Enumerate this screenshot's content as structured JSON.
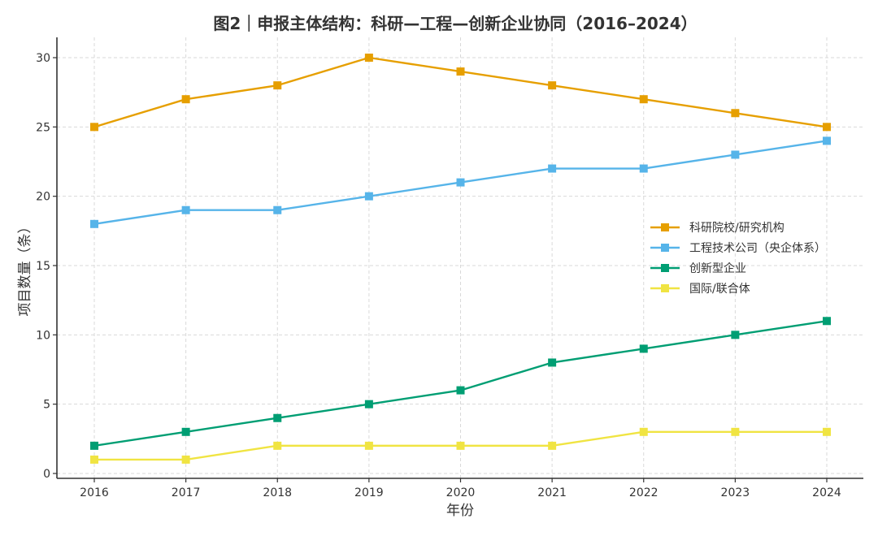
{
  "chart_data": {
    "type": "line",
    "title": "图2｜申报主体结构：科研—工程—创新企业协同（2016–2024）",
    "xlabel": "年份",
    "ylabel": "项目数量（条）",
    "x": [
      2016,
      2017,
      2018,
      2019,
      2020,
      2021,
      2022,
      2023,
      2024
    ],
    "x_tick_labels": [
      "2016",
      "2017",
      "2018",
      "2019",
      "2020",
      "2021",
      "2022",
      "2023",
      "2024"
    ],
    "y_ticks": [
      0,
      5,
      10,
      15,
      20,
      25,
      30
    ],
    "y_tick_labels": [
      "0",
      "5",
      "10",
      "15",
      "20",
      "25",
      "30"
    ],
    "ylim": [
      -0.35,
      31.5
    ],
    "grid": true,
    "legend_position": "center-right",
    "series": [
      {
        "name": "科研院校/研究机构",
        "color": "#E69F00",
        "marker": "square",
        "values": [
          25,
          27,
          28,
          30,
          29,
          28,
          27,
          26,
          25
        ]
      },
      {
        "name": "工程技术公司（央企体系）",
        "color": "#56B4E9",
        "marker": "square",
        "values": [
          18,
          19,
          19,
          20,
          21,
          22,
          22,
          23,
          24
        ]
      },
      {
        "name": "创新型企业",
        "color": "#009E73",
        "marker": "square",
        "values": [
          2,
          3,
          4,
          5,
          6,
          8,
          9,
          10,
          11
        ]
      },
      {
        "name": "国际/联合体",
        "color": "#F0E442",
        "marker": "square",
        "values": [
          1,
          1,
          2,
          2,
          2,
          2,
          3,
          3,
          3
        ]
      }
    ]
  }
}
